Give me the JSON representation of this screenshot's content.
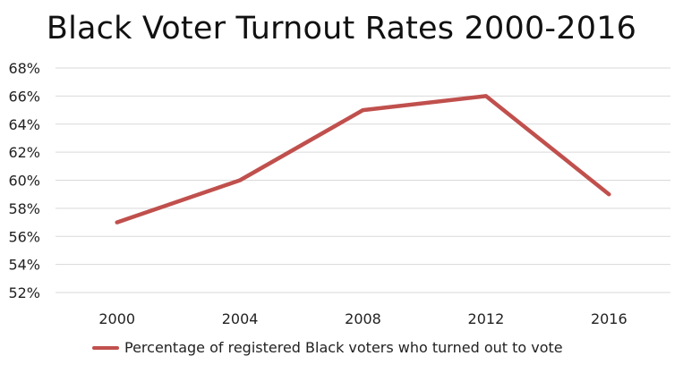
{
  "chart_data": {
    "type": "line",
    "title": "Black Voter Turnout Rates 2000-2016",
    "xlabel": "",
    "ylabel": "",
    "categories": [
      "2000",
      "2004",
      "2008",
      "2012",
      "2016"
    ],
    "series": [
      {
        "name": "Percentage of registered Black voters who turned out to vote",
        "values": [
          57,
          60,
          65,
          66,
          59
        ]
      }
    ],
    "ylim": [
      52,
      68
    ],
    "y_ticks": [
      52,
      54,
      56,
      58,
      60,
      62,
      64,
      66,
      68
    ],
    "y_tick_labels": [
      "52%",
      "54%",
      "56%",
      "58%",
      "60%",
      "62%",
      "64%",
      "66%",
      "68%"
    ],
    "grid": true,
    "legend_position": "bottom",
    "colors": {
      "line": "#c0504d",
      "grid": "#d9d9d9"
    }
  }
}
